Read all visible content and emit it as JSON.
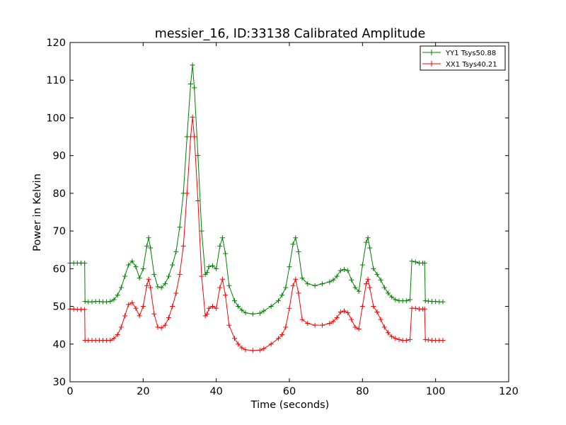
{
  "chart_data": {
    "type": "line",
    "title": "messier_16, ID:33138 Calibrated Amplitude",
    "xlabel": "Time (seconds)",
    "ylabel": "Power in Kelvin",
    "xlim": [
      0,
      120
    ],
    "ylim": [
      30,
      120
    ],
    "xticks": [
      0,
      20,
      40,
      60,
      80,
      100,
      120
    ],
    "yticks": [
      30,
      40,
      50,
      60,
      70,
      80,
      90,
      100,
      110,
      120
    ],
    "grid": false,
    "legend_position": "top-right",
    "marker": "+",
    "series": [
      {
        "name": "YY1 Tsys50.88",
        "color": "#008000",
        "points": [
          [
            0.0,
            61.5
          ],
          [
            1.0,
            61.5
          ],
          [
            2.0,
            61.5
          ],
          [
            3.0,
            61.5
          ],
          [
            4.0,
            61.5
          ],
          [
            4.1,
            51.3
          ],
          [
            5.0,
            51.2
          ],
          [
            6.0,
            51.2
          ],
          [
            7.0,
            51.3
          ],
          [
            8.0,
            51.3
          ],
          [
            9.0,
            51.2
          ],
          [
            10.0,
            51.2
          ],
          [
            11.0,
            51.3
          ],
          [
            12.0,
            51.8
          ],
          [
            13.0,
            53.0
          ],
          [
            14.0,
            55.0
          ],
          [
            15.0,
            58.0
          ],
          [
            16.0,
            61.0
          ],
          [
            17.0,
            62.0
          ],
          [
            18.0,
            60.5
          ],
          [
            19.0,
            57.5
          ],
          [
            20.0,
            60.0
          ],
          [
            21.0,
            66.0
          ],
          [
            21.5,
            68.2
          ],
          [
            22.0,
            65.5
          ],
          [
            23.0,
            58.5
          ],
          [
            24.0,
            55.2
          ],
          [
            25.0,
            55.0
          ],
          [
            26.0,
            56.0
          ],
          [
            27.0,
            58.0
          ],
          [
            28.0,
            61.0
          ],
          [
            29.0,
            64.5
          ],
          [
            30.0,
            71.0
          ],
          [
            31.0,
            80.0
          ],
          [
            32.0,
            95.0
          ],
          [
            33.0,
            109.0
          ],
          [
            33.5,
            114.0
          ],
          [
            34.0,
            108.0
          ],
          [
            35.0,
            90.0
          ],
          [
            36.0,
            70.0
          ],
          [
            37.0,
            58.5
          ],
          [
            37.5,
            59.0
          ],
          [
            38.0,
            60.5
          ],
          [
            39.0,
            60.8
          ],
          [
            40.0,
            60.0
          ],
          [
            41.0,
            66.0
          ],
          [
            41.7,
            68.2
          ],
          [
            42.5,
            64.0
          ],
          [
            43.5,
            55.5
          ],
          [
            45.0,
            51.5
          ],
          [
            46.0,
            50.0
          ],
          [
            47.0,
            49.0
          ],
          [
            48.0,
            48.3
          ],
          [
            50.0,
            48.0
          ],
          [
            52.0,
            48.2
          ],
          [
            53.0,
            48.8
          ],
          [
            55.0,
            50.0
          ],
          [
            57.0,
            51.5
          ],
          [
            58.0,
            53.0
          ],
          [
            59.0,
            55.0
          ],
          [
            60.0,
            60.5
          ],
          [
            61.0,
            66.5
          ],
          [
            61.7,
            68.2
          ],
          [
            62.5,
            64.5
          ],
          [
            63.5,
            57.5
          ],
          [
            65.0,
            56.0
          ],
          [
            67.0,
            55.5
          ],
          [
            69.0,
            56.0
          ],
          [
            71.0,
            56.5
          ],
          [
            72.0,
            57.0
          ],
          [
            73.0,
            58.0
          ],
          [
            74.0,
            59.5
          ],
          [
            75.0,
            59.8
          ],
          [
            76.0,
            59.5
          ],
          [
            77.0,
            57.0
          ],
          [
            78.0,
            55.0
          ],
          [
            79.0,
            54.0
          ],
          [
            80.0,
            61.0
          ],
          [
            81.0,
            67.0
          ],
          [
            81.5,
            68.2
          ],
          [
            82.0,
            65.5
          ],
          [
            83.0,
            60.0
          ],
          [
            84.0,
            58.5
          ],
          [
            85.0,
            57.0
          ],
          [
            86.0,
            55.0
          ],
          [
            87.0,
            53.5
          ],
          [
            88.0,
            52.5
          ],
          [
            89.0,
            51.8
          ],
          [
            90.0,
            51.5
          ],
          [
            91.0,
            51.5
          ],
          [
            92.0,
            51.5
          ],
          [
            93.0,
            51.8
          ],
          [
            93.5,
            62.0
          ],
          [
            94.5,
            61.8
          ],
          [
            95.5,
            61.5
          ],
          [
            96.5,
            61.5
          ],
          [
            97.0,
            61.5
          ],
          [
            97.2,
            51.5
          ],
          [
            98.0,
            51.4
          ],
          [
            99.0,
            51.3
          ],
          [
            100.0,
            51.3
          ],
          [
            101.0,
            51.2
          ],
          [
            102.0,
            51.2
          ]
        ]
      },
      {
        "name": "XX1 Tsys40.21",
        "color": "#ff0000",
        "points": [
          [
            0.0,
            49.3
          ],
          [
            1.0,
            49.3
          ],
          [
            2.0,
            49.2
          ],
          [
            3.0,
            49.2
          ],
          [
            4.0,
            49.2
          ],
          [
            4.1,
            41.0
          ],
          [
            5.0,
            41.0
          ],
          [
            6.0,
            41.0
          ],
          [
            7.0,
            41.0
          ],
          [
            8.0,
            41.0
          ],
          [
            9.0,
            41.0
          ],
          [
            10.0,
            41.0
          ],
          [
            11.0,
            41.0
          ],
          [
            12.0,
            41.5
          ],
          [
            13.0,
            42.5
          ],
          [
            14.0,
            44.5
          ],
          [
            15.0,
            47.5
          ],
          [
            16.0,
            50.5
          ],
          [
            17.0,
            51.0
          ],
          [
            18.0,
            49.5
          ],
          [
            19.0,
            47.5
          ],
          [
            20.0,
            50.0
          ],
          [
            21.0,
            55.5
          ],
          [
            21.5,
            57.2
          ],
          [
            22.0,
            55.0
          ],
          [
            23.0,
            48.0
          ],
          [
            24.0,
            44.5
          ],
          [
            25.0,
            44.3
          ],
          [
            26.0,
            45.0
          ],
          [
            27.0,
            47.0
          ],
          [
            28.0,
            50.0
          ],
          [
            29.0,
            53.5
          ],
          [
            30.0,
            58.5
          ],
          [
            31.0,
            66.0
          ],
          [
            32.0,
            80.0
          ],
          [
            33.0,
            95.0
          ],
          [
            33.5,
            100.2
          ],
          [
            34.0,
            95.0
          ],
          [
            35.0,
            78.0
          ],
          [
            36.0,
            58.0
          ],
          [
            37.0,
            47.5
          ],
          [
            37.5,
            48.0
          ],
          [
            38.0,
            49.5
          ],
          [
            39.0,
            50.0
          ],
          [
            40.0,
            49.5
          ],
          [
            41.0,
            55.0
          ],
          [
            41.7,
            57.2
          ],
          [
            42.5,
            53.0
          ],
          [
            43.5,
            45.0
          ],
          [
            45.0,
            41.5
          ],
          [
            46.0,
            40.0
          ],
          [
            47.0,
            39.0
          ],
          [
            48.0,
            38.5
          ],
          [
            50.0,
            38.3
          ],
          [
            52.0,
            38.4
          ],
          [
            53.0,
            38.8
          ],
          [
            55.0,
            40.0
          ],
          [
            57.0,
            41.5
          ],
          [
            58.0,
            42.5
          ],
          [
            59.0,
            44.5
          ],
          [
            60.0,
            49.5
          ],
          [
            61.0,
            55.5
          ],
          [
            61.7,
            57.2
          ],
          [
            62.5,
            53.5
          ],
          [
            63.5,
            46.5
          ],
          [
            65.0,
            45.5
          ],
          [
            67.0,
            45.0
          ],
          [
            69.0,
            45.0
          ],
          [
            71.0,
            45.5
          ],
          [
            72.0,
            46.0
          ],
          [
            73.0,
            47.0
          ],
          [
            74.0,
            48.5
          ],
          [
            75.0,
            48.8
          ],
          [
            76.0,
            48.3
          ],
          [
            77.0,
            46.5
          ],
          [
            78.0,
            44.5
          ],
          [
            79.0,
            44.0
          ],
          [
            80.0,
            50.0
          ],
          [
            81.0,
            56.0
          ],
          [
            81.5,
            57.2
          ],
          [
            82.0,
            55.0
          ],
          [
            83.0,
            50.0
          ],
          [
            84.0,
            48.5
          ],
          [
            85.0,
            46.5
          ],
          [
            86.0,
            44.5
          ],
          [
            87.0,
            43.0
          ],
          [
            88.0,
            42.0
          ],
          [
            89.0,
            41.5
          ],
          [
            90.0,
            41.2
          ],
          [
            91.0,
            41.0
          ],
          [
            92.0,
            41.0
          ],
          [
            93.0,
            41.2
          ],
          [
            93.5,
            49.5
          ],
          [
            94.5,
            49.5
          ],
          [
            95.5,
            49.3
          ],
          [
            96.5,
            49.3
          ],
          [
            97.0,
            49.3
          ],
          [
            97.2,
            41.2
          ],
          [
            98.0,
            41.1
          ],
          [
            99.0,
            41.0
          ],
          [
            100.0,
            41.0
          ],
          [
            101.0,
            41.0
          ],
          [
            102.0,
            41.0
          ]
        ]
      }
    ]
  }
}
